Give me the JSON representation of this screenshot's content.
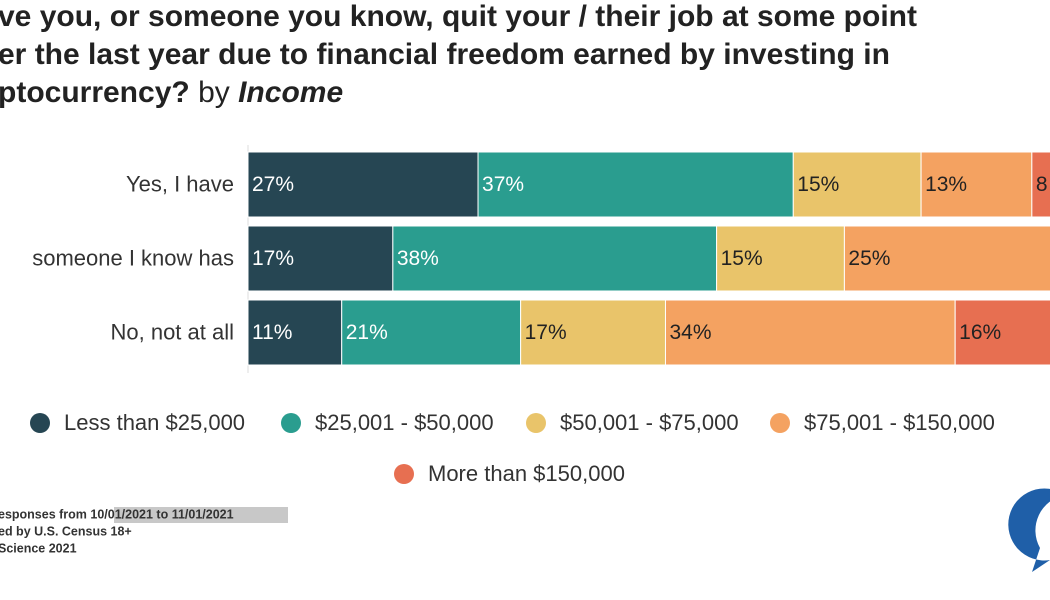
{
  "chart_data": {
    "type": "bar",
    "orientation": "horizontal",
    "stacked": true,
    "title_lines": [
      "ve you, or someone you know, quit your / their job at some point",
      "er the last year due to financial freedom earned by investing in",
      "ptocurrency?"
    ],
    "title_by": "by",
    "title_group": "Income",
    "categories": [
      "Yes, I have",
      "someone I know has",
      "No, not at all"
    ],
    "series": [
      {
        "name": "Less than $25,000",
        "color": "#264653",
        "label_color": "#ffffff",
        "values": [
          27,
          17,
          11
        ],
        "value_labels": [
          "27%",
          "17%",
          "11%"
        ]
      },
      {
        "name": "$25,001 - $50,000",
        "color": "#2a9d8f",
        "label_color": "#ffffff",
        "values": [
          37,
          38,
          21
        ],
        "value_labels": [
          "37%",
          "38%",
          "21%"
        ]
      },
      {
        "name": "$50,001 - $75,000",
        "color": "#e9c46a",
        "label_color": "#222222",
        "values": [
          15,
          15,
          17
        ],
        "value_labels": [
          "15%",
          "15%",
          "17%"
        ]
      },
      {
        "name": "$75,001 - $150,000",
        "color": "#f4a261",
        "label_color": "#222222",
        "values": [
          13,
          25,
          34
        ],
        "value_labels": [
          "13%",
          "25%",
          "34%"
        ]
      },
      {
        "name": "More than $150,000",
        "color": "#e76f51",
        "label_color": "#222222",
        "values": [
          8,
          null,
          16
        ],
        "value_labels": [
          "8",
          null,
          "16%"
        ]
      }
    ],
    "notes": [
      "esponses from 10/01/2021 to 11/01/2021",
      "ed by U.S. Census 18+",
      "Science 2021"
    ],
    "logo": [
      "C",
      "S"
    ]
  }
}
